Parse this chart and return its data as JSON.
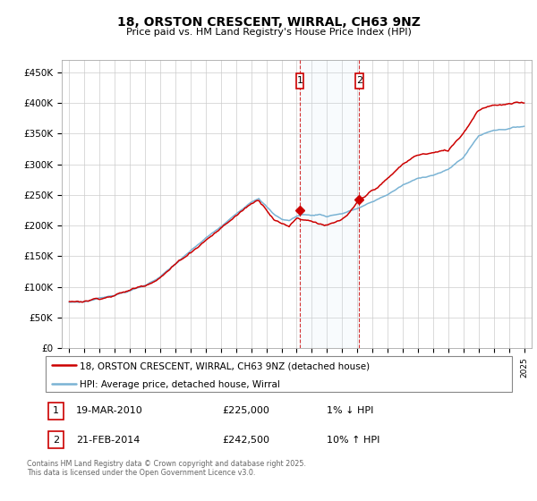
{
  "title_line1": "18, ORSTON CRESCENT, WIRRAL, CH63 9NZ",
  "title_line2": "Price paid vs. HM Land Registry's House Price Index (HPI)",
  "ylabel_ticks": [
    "£0",
    "£50K",
    "£100K",
    "£150K",
    "£200K",
    "£250K",
    "£300K",
    "£350K",
    "£400K",
    "£450K"
  ],
  "ytick_values": [
    0,
    50000,
    100000,
    150000,
    200000,
    250000,
    300000,
    350000,
    400000,
    450000
  ],
  "ylim": [
    0,
    470000
  ],
  "xlim_start": 1994.5,
  "xlim_end": 2025.5,
  "hpi_color": "#7ab3d4",
  "price_color": "#cc0000",
  "marker1_x": 2010.21,
  "marker2_x": 2014.13,
  "marker1_price_y": 225000,
  "marker2_price_y": 242500,
  "marker1_label": "19-MAR-2010",
  "marker1_price": "£225,000",
  "marker1_hpi": "1% ↓ HPI",
  "marker2_label": "21-FEB-2014",
  "marker2_price": "£242,500",
  "marker2_hpi": "10% ↑ HPI",
  "legend_line1": "18, ORSTON CRESCENT, WIRRAL, CH63 9NZ (detached house)",
  "legend_line2": "HPI: Average price, detached house, Wirral",
  "footer": "Contains HM Land Registry data © Crown copyright and database right 2025.\nThis data is licensed under the Open Government Licence v3.0.",
  "xtick_years": [
    1995,
    1996,
    1997,
    1998,
    1999,
    2000,
    2001,
    2002,
    2003,
    2004,
    2005,
    2006,
    2007,
    2008,
    2009,
    2010,
    2011,
    2012,
    2013,
    2014,
    2015,
    2016,
    2017,
    2018,
    2019,
    2020,
    2021,
    2022,
    2023,
    2024,
    2025
  ],
  "hpi_knots_x": [
    1995,
    1996,
    1997,
    1998,
    1999,
    2000,
    2001,
    2002,
    2003,
    2004,
    2005,
    2006,
    2007,
    2007.5,
    2008,
    2008.5,
    2009,
    2009.5,
    2010,
    2010.5,
    2011,
    2011.5,
    2012,
    2012.5,
    2013,
    2013.5,
    2014,
    2014.5,
    2015,
    2016,
    2017,
    2018,
    2019,
    2020,
    2021,
    2022,
    2023,
    2024,
    2025
  ],
  "hpi_knots_y": [
    75000,
    76000,
    82000,
    88000,
    95000,
    103000,
    118000,
    138000,
    158000,
    178000,
    196000,
    216000,
    238000,
    245000,
    232000,
    218000,
    210000,
    208000,
    215000,
    218000,
    216000,
    218000,
    215000,
    218000,
    220000,
    224000,
    228000,
    233000,
    238000,
    250000,
    265000,
    275000,
    282000,
    290000,
    310000,
    345000,
    355000,
    358000,
    362000
  ],
  "price_knots_x": [
    1995,
    1996,
    1997,
    1998,
    1999,
    2000,
    2001,
    2002,
    2003,
    2004,
    2005,
    2006,
    2007,
    2007.5,
    2008,
    2008.5,
    2009,
    2009.5,
    2010,
    2010.5,
    2011,
    2011.5,
    2012,
    2012.5,
    2013,
    2013.5,
    2014,
    2014.5,
    2015,
    2016,
    2017,
    2018,
    2019,
    2020,
    2021,
    2022,
    2023,
    2024,
    2025
  ],
  "price_knots_y": [
    76000,
    78000,
    84000,
    90000,
    97000,
    106000,
    122000,
    142000,
    162000,
    183000,
    202000,
    222000,
    242000,
    248000,
    235000,
    220000,
    212000,
    208000,
    222000,
    220000,
    218000,
    215000,
    212000,
    214000,
    218000,
    228000,
    242000,
    250000,
    260000,
    278000,
    300000,
    315000,
    318000,
    320000,
    350000,
    390000,
    400000,
    400000,
    400000
  ]
}
